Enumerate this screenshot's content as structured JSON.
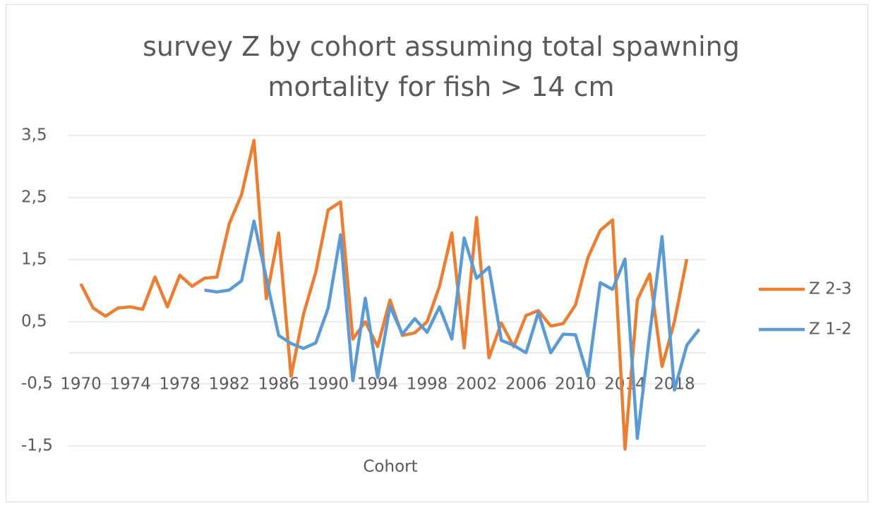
{
  "chart_data": {
    "type": "line",
    "title": "survey Z by cohort assuming total spawning mortality for fish > 14 cm",
    "x_label": "Cohort",
    "x": [
      1970,
      1971,
      1972,
      1973,
      1974,
      1975,
      1976,
      1977,
      1978,
      1979,
      1980,
      1981,
      1982,
      1983,
      1984,
      1985,
      1986,
      1987,
      1988,
      1989,
      1990,
      1991,
      1992,
      1993,
      1994,
      1995,
      1996,
      1997,
      1998,
      1999,
      2000,
      2001,
      2002,
      2003,
      2004,
      2005,
      2006,
      2007,
      2008,
      2009,
      2010,
      2011,
      2012,
      2013,
      2014,
      2015,
      2016,
      2017,
      2018,
      2019,
      2020
    ],
    "xlim": [
      1969,
      2021
    ],
    "xticks": [
      1970,
      1974,
      1978,
      1982,
      1986,
      1990,
      1994,
      1998,
      2002,
      2006,
      2010,
      2014,
      2018
    ],
    "ylim": [
      -1.5,
      3.5
    ],
    "yticks": [
      {
        "value": 3.5,
        "label": "3,5"
      },
      {
        "value": 2.5,
        "label": "2,5"
      },
      {
        "value": 1.5,
        "label": "1,5"
      },
      {
        "value": 0.5,
        "label": "0,5"
      },
      {
        "value": -0.5,
        "label": "-0,5"
      },
      {
        "value": -1.5,
        "label": "-1,5"
      }
    ],
    "grid": true,
    "legend": "right",
    "series": [
      {
        "name": "Z 2-3",
        "color": "#ed7d31",
        "values": [
          1.11,
          0.72,
          0.59,
          0.72,
          0.74,
          0.7,
          1.22,
          0.74,
          1.25,
          1.07,
          1.2,
          1.22,
          2.08,
          2.55,
          3.42,
          0.87,
          1.93,
          -0.38,
          0.62,
          1.3,
          2.3,
          2.43,
          0.22,
          0.5,
          0.1,
          0.85,
          0.28,
          0.32,
          0.5,
          1.07,
          1.93,
          0.08,
          2.18,
          -0.08,
          0.48,
          0.1,
          0.6,
          0.68,
          0.43,
          0.47,
          0.77,
          1.53,
          1.97,
          2.14,
          -1.55,
          0.85,
          1.27,
          -0.22,
          0.5,
          1.51,
          null
        ]
      },
      {
        "name": "Z 1-2",
        "color": "#5b9bd5",
        "values": [
          null,
          null,
          null,
          null,
          null,
          null,
          null,
          null,
          null,
          null,
          1.01,
          0.98,
          1.01,
          1.16,
          2.12,
          1.2,
          0.28,
          0.15,
          0.07,
          0.16,
          0.72,
          1.9,
          -0.45,
          0.88,
          -0.4,
          0.75,
          0.3,
          0.55,
          0.33,
          0.74,
          0.22,
          1.85,
          1.2,
          1.38,
          0.2,
          0.12,
          0.0,
          0.65,
          0.0,
          0.3,
          0.29,
          -0.38,
          1.13,
          1.02,
          1.51,
          -1.38,
          0.3,
          1.87,
          -0.6,
          0.12,
          0.38
        ]
      }
    ]
  }
}
